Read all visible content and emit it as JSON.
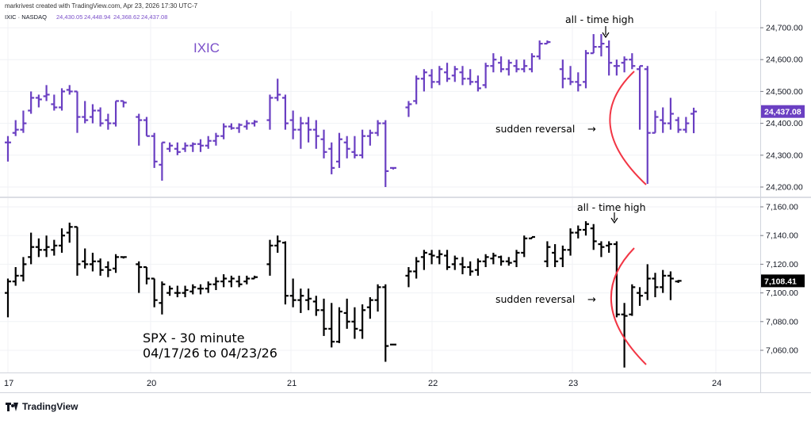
{
  "attribution": "markrivest created with TradingView.com, Apr 23, 2026 17:30 UTC-7",
  "brand": "TradingView",
  "chart_data": [
    {
      "type": "ohlc-bar",
      "panel": "top",
      "legend": {
        "symbol": "IXIC · NASDAQ",
        "ohlc": [
          "24,430.05",
          "24,448.94",
          "24,368.62",
          "24,437.08"
        ]
      },
      "title": "IXIC",
      "title_color": "#7a4fc9",
      "bar_color": "#6a3fc2",
      "ylim": [
        24150,
        24800
      ],
      "yticks": [
        24200,
        24300,
        24400,
        24500,
        24600,
        24700
      ],
      "ytick_labels": [
        "24,200.00",
        "24,300.00",
        "24,400.00",
        "24,500.00",
        "24,600.00",
        "24,700.00"
      ],
      "last_price_label": "24,437.08",
      "last_price": 24437.08,
      "x_categories": [
        "17",
        "20",
        "21",
        "22",
        "23",
        "24"
      ],
      "annotations": {
        "high_text": "all - time high",
        "reversal_text": "sudden reversal",
        "reversal_arrow": "→"
      },
      "bars": [
        [
          0,
          24340,
          24360,
          24280,
          24340
        ],
        [
          1,
          24370,
          24410,
          24360,
          24380
        ],
        [
          2,
          24380,
          24440,
          24370,
          24400
        ],
        [
          3,
          24440,
          24500,
          24430,
          24480
        ],
        [
          4,
          24480,
          24490,
          24450,
          24475
        ],
        [
          5,
          24485,
          24520,
          24470,
          24490
        ],
        [
          6,
          24460,
          24490,
          24440,
          24450
        ],
        [
          7,
          24450,
          24510,
          24440,
          24500
        ],
        [
          8,
          24505,
          24520,
          24490,
          24500
        ],
        [
          9,
          24500,
          24500,
          24370,
          24420
        ],
        [
          10,
          24420,
          24470,
          24400,
          24410
        ],
        [
          11,
          24420,
          24460,
          24400,
          24440
        ],
        [
          12,
          24440,
          24450,
          24390,
          24400
        ],
        [
          13,
          24410,
          24430,
          24380,
          24400
        ],
        [
          14,
          24400,
          24470,
          24390,
          24470
        ],
        [
          15,
          24470,
          24470,
          24450,
          24465
        ],
        [
          17,
          24420,
          24430,
          24330,
          24410
        ],
        [
          18,
          24410,
          24420,
          24360,
          24360
        ],
        [
          19,
          24360,
          24370,
          24260,
          24280
        ],
        [
          20,
          24270,
          24340,
          24220,
          24340
        ],
        [
          21,
          24320,
          24340,
          24310,
          24330
        ],
        [
          22,
          24320,
          24340,
          24300,
          24310
        ],
        [
          23,
          24320,
          24340,
          24310,
          24330
        ],
        [
          24,
          24330,
          24340,
          24310,
          24335
        ],
        [
          25,
          24335,
          24350,
          24310,
          24330
        ],
        [
          26,
          24330,
          24360,
          24320,
          24345
        ],
        [
          27,
          24345,
          24370,
          24330,
          24360
        ],
        [
          28,
          24360,
          24400,
          24350,
          24390
        ],
        [
          29,
          24390,
          24400,
          24380,
          24385
        ],
        [
          30,
          24385,
          24400,
          24370,
          24395
        ],
        [
          31,
          24390,
          24410,
          24380,
          24400
        ],
        [
          32,
          24400,
          24410,
          24390,
          24405
        ],
        [
          34,
          24410,
          24490,
          24380,
          24480
        ],
        [
          35,
          24480,
          24540,
          24470,
          24490
        ],
        [
          36,
          24480,
          24490,
          24380,
          24400
        ],
        [
          37,
          24410,
          24440,
          24350,
          24380
        ],
        [
          38,
          24380,
          24420,
          24320,
          24400
        ],
        [
          39,
          24400,
          24420,
          24340,
          24380
        ],
        [
          40,
          24380,
          24410,
          24320,
          24360
        ],
        [
          41,
          24350,
          24380,
          24290,
          24310
        ],
        [
          42,
          24320,
          24340,
          24240,
          24260
        ],
        [
          43,
          24280,
          24370,
          24260,
          24350
        ],
        [
          44,
          24340,
          24360,
          24290,
          24320
        ],
        [
          45,
          24310,
          24360,
          24290,
          24300
        ],
        [
          46,
          24300,
          24380,
          24290,
          24360
        ],
        [
          47,
          24360,
          24380,
          24330,
          24370
        ],
        [
          48,
          24370,
          24410,
          24360,
          24400
        ],
        [
          49,
          24400,
          24410,
          24200,
          24250
        ],
        [
          50,
          24260,
          24260,
          24255,
          24260
        ],
        [
          52,
          24450,
          24470,
          24420,
          24460
        ],
        [
          53,
          24470,
          24550,
          24460,
          24540
        ],
        [
          54,
          24540,
          24570,
          24500,
          24560
        ],
        [
          55,
          24550,
          24570,
          24510,
          24530
        ],
        [
          56,
          24530,
          24580,
          24520,
          24570
        ],
        [
          57,
          24560,
          24590,
          24530,
          24540
        ],
        [
          58,
          24550,
          24580,
          24530,
          24570
        ],
        [
          59,
          24560,
          24580,
          24520,
          24540
        ],
        [
          60,
          24540,
          24570,
          24520,
          24530
        ],
        [
          61,
          24530,
          24550,
          24500,
          24510
        ],
        [
          62,
          24520,
          24590,
          24510,
          24580
        ],
        [
          63,
          24580,
          24620,
          24560,
          24600
        ],
        [
          64,
          24590,
          24610,
          24560,
          24570
        ],
        [
          65,
          24570,
          24600,
          24550,
          24590
        ],
        [
          66,
          24580,
          24600,
          24560,
          24570
        ],
        [
          67,
          24570,
          24600,
          24560,
          24580
        ],
        [
          68,
          24570,
          24620,
          24560,
          24610
        ],
        [
          69,
          24610,
          24660,
          24600,
          24650
        ],
        [
          70,
          24650,
          24660,
          24650,
          24655
        ],
        [
          72,
          24570,
          24600,
          24510,
          24540
        ],
        [
          73,
          24540,
          24580,
          24520,
          24530
        ],
        [
          74,
          24530,
          24560,
          24500,
          24520
        ],
        [
          75,
          24530,
          24630,
          24510,
          24620
        ],
        [
          76,
          24620,
          24680,
          24620,
          24640
        ],
        [
          77,
          24640,
          24680,
          24610,
          24650
        ],
        [
          78,
          24640,
          24660,
          24550,
          24590
        ],
        [
          79,
          24580,
          24600,
          24550,
          24580
        ],
        [
          80,
          24590,
          24610,
          24560,
          24600
        ],
        [
          81,
          24600,
          24620,
          24570,
          24580
        ],
        [
          82,
          24570,
          24580,
          24380,
          24580
        ],
        [
          83,
          24570,
          24580,
          24210,
          24370
        ],
        [
          84,
          24370,
          24440,
          24370,
          24420
        ],
        [
          85,
          24410,
          24450,
          24370,
          24400
        ],
        [
          86,
          24400,
          24480,
          24380,
          24430
        ],
        [
          87,
          24410,
          24420,
          24370,
          24380
        ],
        [
          88,
          24380,
          24420,
          24370,
          24400
        ],
        [
          89,
          24430,
          24449,
          24369,
          24437
        ]
      ]
    },
    {
      "type": "ohlc-bar",
      "panel": "bottom",
      "title": "SPX - 30 minute",
      "subtitle": "04/17/26 to 04/23/26",
      "bar_color": "#000000",
      "ylim": [
        7040,
        7165
      ],
      "yticks": [
        7060,
        7080,
        7100,
        7120,
        7140,
        7160
      ],
      "ytick_labels": [
        "7,060.00",
        "7,080.00",
        "7,100.00",
        "7,120.00",
        "7,140.00",
        "7,160.00"
      ],
      "last_price_label": "7,108.41",
      "last_price": 7108.41,
      "x_tick_labels": [
        "17",
        "20",
        "21",
        "22",
        "23",
        "24"
      ],
      "annotations": {
        "high_text": "all - time high",
        "reversal_text": "sudden reversal",
        "reversal_arrow": "→"
      },
      "bars": [
        [
          0,
          7100,
          7110,
          7083,
          7108
        ],
        [
          1,
          7108,
          7118,
          7105,
          7112
        ],
        [
          2,
          7112,
          7125,
          7108,
          7120
        ],
        [
          3,
          7125,
          7142,
          7120,
          7132
        ],
        [
          4,
          7132,
          7138,
          7125,
          7130
        ],
        [
          5,
          7130,
          7140,
          7125,
          7132
        ],
        [
          6,
          7130,
          7137,
          7126,
          7133
        ],
        [
          7,
          7133,
          7145,
          7128,
          7140
        ],
        [
          8,
          7142,
          7149,
          7135,
          7146
        ],
        [
          9,
          7146,
          7146,
          7112,
          7120
        ],
        [
          10,
          7122,
          7131,
          7117,
          7120
        ],
        [
          11,
          7120,
          7128,
          7115,
          7122
        ],
        [
          12,
          7122,
          7124,
          7112,
          7116
        ],
        [
          13,
          7118,
          7122,
          7111,
          7116
        ],
        [
          14,
          7117,
          7127,
          7114,
          7125
        ],
        [
          15,
          7125,
          7125,
          7124,
          7125
        ],
        [
          17,
          7120,
          7122,
          7100,
          7118
        ],
        [
          18,
          7118,
          7118,
          7106,
          7110
        ],
        [
          19,
          7110,
          7110,
          7090,
          7095
        ],
        [
          20,
          7093,
          7108,
          7085,
          7106
        ],
        [
          21,
          7100,
          7105,
          7098,
          7103
        ],
        [
          22,
          7100,
          7105,
          7097,
          7100
        ],
        [
          23,
          7100,
          7105,
          7097,
          7102
        ],
        [
          24,
          7101,
          7106,
          7099,
          7104
        ],
        [
          25,
          7103,
          7106,
          7099,
          7103
        ],
        [
          26,
          7103,
          7108,
          7100,
          7106
        ],
        [
          27,
          7106,
          7111,
          7102,
          7108
        ],
        [
          28,
          7108,
          7113,
          7104,
          7110
        ],
        [
          29,
          7108,
          7112,
          7104,
          7110
        ],
        [
          30,
          7108,
          7112,
          7104,
          7106
        ],
        [
          31,
          7108,
          7112,
          7106,
          7110
        ],
        [
          32,
          7110,
          7112,
          7110,
          7111
        ],
        [
          34,
          7120,
          7137,
          7112,
          7133
        ],
        [
          35,
          7133,
          7140,
          7128,
          7136
        ],
        [
          36,
          7135,
          7136,
          7092,
          7098
        ],
        [
          37,
          7098,
          7110,
          7090,
          7095
        ],
        [
          38,
          7095,
          7103,
          7086,
          7098
        ],
        [
          39,
          7095,
          7103,
          7088,
          7096
        ],
        [
          40,
          7094,
          7098,
          7084,
          7088
        ],
        [
          41,
          7088,
          7096,
          7070,
          7075
        ],
        [
          42,
          7075,
          7093,
          7062,
          7066
        ],
        [
          43,
          7066,
          7090,
          7065,
          7087
        ],
        [
          44,
          7086,
          7096,
          7075,
          7080
        ],
        [
          45,
          7080,
          7090,
          7068,
          7075
        ],
        [
          46,
          7074,
          7092,
          7068,
          7088
        ],
        [
          47,
          7090,
          7097,
          7082,
          7095
        ],
        [
          48,
          7095,
          7106,
          7087,
          7104
        ],
        [
          49,
          7104,
          7106,
          7052,
          7063
        ],
        [
          50,
          7064,
          7064,
          7064,
          7064
        ],
        [
          52,
          7112,
          7118,
          7104,
          7115
        ],
        [
          53,
          7115,
          7125,
          7110,
          7122
        ],
        [
          54,
          7125,
          7130,
          7116,
          7128
        ],
        [
          55,
          7127,
          7130,
          7120,
          7126
        ],
        [
          56,
          7125,
          7130,
          7120,
          7127
        ],
        [
          57,
          7126,
          7130,
          7116,
          7118
        ],
        [
          58,
          7120,
          7126,
          7116,
          7124
        ],
        [
          59,
          7120,
          7125,
          7113,
          7118
        ],
        [
          60,
          7118,
          7122,
          7112,
          7115
        ],
        [
          61,
          7116,
          7124,
          7112,
          7122
        ],
        [
          62,
          7122,
          7127,
          7118,
          7125
        ],
        [
          63,
          7124,
          7128,
          7120,
          7126
        ],
        [
          64,
          7125,
          7126,
          7119,
          7122
        ],
        [
          65,
          7122,
          7125,
          7119,
          7121
        ],
        [
          66,
          7122,
          7130,
          7118,
          7128
        ],
        [
          67,
          7128,
          7140,
          7125,
          7138
        ],
        [
          68,
          7138,
          7139,
          7138,
          7139
        ],
        [
          70,
          7122,
          7136,
          7118,
          7132
        ],
        [
          71,
          7128,
          7134,
          7118,
          7122
        ],
        [
          72,
          7124,
          7133,
          7118,
          7130
        ],
        [
          73,
          7130,
          7145,
          7126,
          7142
        ],
        [
          74,
          7142,
          7147,
          7138,
          7144
        ],
        [
          75,
          7144,
          7150,
          7140,
          7148
        ],
        [
          76,
          7145,
          7148,
          7130,
          7136
        ],
        [
          77,
          7134,
          7136,
          7125,
          7132
        ],
        [
          78,
          7133,
          7136,
          7128,
          7134
        ],
        [
          79,
          7134,
          7136,
          7083,
          7085
        ],
        [
          80,
          7085,
          7093,
          7048,
          7084
        ],
        [
          81,
          7085,
          7106,
          7084,
          7104
        ],
        [
          82,
          7100,
          7104,
          7091,
          7098
        ],
        [
          83,
          7100,
          7120,
          7095,
          7110
        ],
        [
          84,
          7110,
          7114,
          7097,
          7104
        ],
        [
          85,
          7104,
          7116,
          7100,
          7112
        ],
        [
          86,
          7112,
          7115,
          7095,
          7110
        ],
        [
          87,
          7108,
          7109,
          7107,
          7108.41
        ]
      ]
    }
  ]
}
